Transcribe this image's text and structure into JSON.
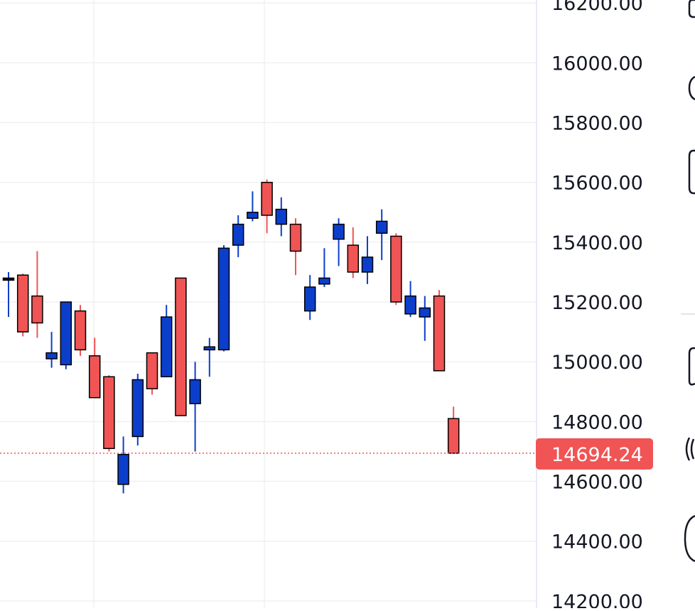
{
  "chart_data": {
    "type": "candlestick",
    "y_axis": {
      "ylim": [
        14176,
        16210
      ],
      "ticks": [
        "16200.00",
        "16000.00",
        "15800.00",
        "15600.00",
        "15400.00",
        "15200.00",
        "15000.00",
        "14800.00",
        "14600.00",
        "14400.00",
        "14200.00"
      ],
      "tick_values": [
        16200,
        16000,
        15800,
        15600,
        15400,
        15200,
        15000,
        14800,
        14600,
        14400,
        14200
      ]
    },
    "last_price": {
      "label": "14694.24",
      "value": 14694.24,
      "color": "#f05454"
    },
    "colors": {
      "up": "#0b3fcb",
      "down": "#f05454",
      "wick_up": "#0b3fcb",
      "wick_down": "#f05454",
      "grid": "#f0f0f0",
      "outline": "#000000"
    },
    "candles": [
      {
        "i": 0,
        "o": 15280,
        "h": 15300,
        "l": 15150,
        "c": 15280,
        "dir": "flat"
      },
      {
        "i": 1,
        "o": 15290,
        "h": 15295,
        "l": 15085,
        "c": 15100,
        "dir": "down"
      },
      {
        "i": 2,
        "o": 15220,
        "h": 15370,
        "l": 15080,
        "c": 15130,
        "dir": "down"
      },
      {
        "i": 3,
        "o": 15010,
        "h": 15100,
        "l": 14980,
        "c": 15030,
        "dir": "up"
      },
      {
        "i": 4,
        "o": 14990,
        "h": 15200,
        "l": 14975,
        "c": 15200,
        "dir": "up"
      },
      {
        "i": 5,
        "o": 15170,
        "h": 15190,
        "l": 15020,
        "c": 15040,
        "dir": "down"
      },
      {
        "i": 6,
        "o": 15020,
        "h": 15080,
        "l": 14880,
        "c": 14880,
        "dir": "down"
      },
      {
        "i": 7,
        "o": 14950,
        "h": 14955,
        "l": 14700,
        "c": 14710,
        "dir": "down"
      },
      {
        "i": 8,
        "o": 14590,
        "h": 14750,
        "l": 14560,
        "c": 14690,
        "dir": "up"
      },
      {
        "i": 9,
        "o": 14750,
        "h": 14960,
        "l": 14720,
        "c": 14940,
        "dir": "up"
      },
      {
        "i": 10,
        "o": 15030,
        "h": 15030,
        "l": 14890,
        "c": 14910,
        "dir": "down"
      },
      {
        "i": 11,
        "o": 14950,
        "h": 15190,
        "l": 14950,
        "c": 15150,
        "dir": "up"
      },
      {
        "i": 12,
        "o": 15280,
        "h": 15280,
        "l": 14820,
        "c": 14820,
        "dir": "down"
      },
      {
        "i": 13,
        "o": 14860,
        "h": 15000,
        "l": 14700,
        "c": 14940,
        "dir": "up"
      },
      {
        "i": 14,
        "o": 15040,
        "h": 15080,
        "l": 14950,
        "c": 15050,
        "dir": "up"
      },
      {
        "i": 15,
        "o": 15040,
        "h": 15390,
        "l": 15035,
        "c": 15380,
        "dir": "up"
      },
      {
        "i": 16,
        "o": 15390,
        "h": 15490,
        "l": 15350,
        "c": 15460,
        "dir": "up"
      },
      {
        "i": 17,
        "o": 15480,
        "h": 15570,
        "l": 15470,
        "c": 15500,
        "dir": "up"
      },
      {
        "i": 18,
        "o": 15600,
        "h": 15610,
        "l": 15430,
        "c": 15490,
        "dir": "down"
      },
      {
        "i": 19,
        "o": 15460,
        "h": 15550,
        "l": 15420,
        "c": 15510,
        "dir": "up"
      },
      {
        "i": 20,
        "o": 15460,
        "h": 15480,
        "l": 15290,
        "c": 15370,
        "dir": "down"
      },
      {
        "i": 21,
        "o": 15170,
        "h": 15290,
        "l": 15140,
        "c": 15250,
        "dir": "up"
      },
      {
        "i": 22,
        "o": 15260,
        "h": 15380,
        "l": 15250,
        "c": 15280,
        "dir": "up"
      },
      {
        "i": 23,
        "o": 15410,
        "h": 15480,
        "l": 15320,
        "c": 15460,
        "dir": "up"
      },
      {
        "i": 24,
        "o": 15390,
        "h": 15450,
        "l": 15280,
        "c": 15300,
        "dir": "down"
      },
      {
        "i": 25,
        "o": 15300,
        "h": 15420,
        "l": 15260,
        "c": 15350,
        "dir": "up"
      },
      {
        "i": 26,
        "o": 15430,
        "h": 15510,
        "l": 15340,
        "c": 15470,
        "dir": "up"
      },
      {
        "i": 27,
        "o": 15420,
        "h": 15430,
        "l": 15190,
        "c": 15200,
        "dir": "down"
      },
      {
        "i": 28,
        "o": 15160,
        "h": 15270,
        "l": 15150,
        "c": 15220,
        "dir": "up"
      },
      {
        "i": 29,
        "o": 15150,
        "h": 15220,
        "l": 15070,
        "c": 15180,
        "dir": "up"
      },
      {
        "i": 30,
        "o": 15220,
        "h": 15240,
        "l": 14970,
        "c": 14970,
        "dir": "down"
      },
      {
        "i": 31,
        "o": 14810,
        "h": 14850,
        "l": 14694.24,
        "c": 14694.24,
        "dir": "down"
      }
    ]
  }
}
